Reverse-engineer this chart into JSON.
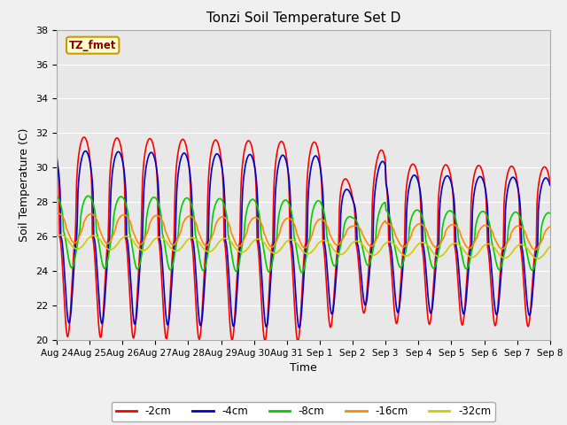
{
  "title": "Tonzi Soil Temperature Set D",
  "xlabel": "Time",
  "ylabel": "Soil Temperature (C)",
  "ylim": [
    20,
    38
  ],
  "yticks": [
    20,
    22,
    24,
    26,
    28,
    30,
    32,
    34,
    36,
    38
  ],
  "fig_bg_color": "#f0f0f0",
  "plot_bg_color": "#e8e8e8",
  "annotation_text": "TZ_fmet",
  "annotation_bg": "#ffffcc",
  "annotation_border": "#cc9900",
  "annotation_text_color": "#880000",
  "series_colors": {
    "-2cm": "#ff0000",
    "-4cm": "#0000cc",
    "-8cm": "#00cc00",
    "-16cm": "#ff8800",
    "-32cm": "#cccc00"
  },
  "series_lw": 1.2,
  "tick_labels": [
    "Aug 24",
    "Aug 25",
    "Aug 26",
    "Aug 27",
    "Aug 28",
    "Aug 29",
    "Aug 30",
    "Aug 31",
    "Sep 1",
    "Sep 2",
    "Sep 3",
    "Sep 4",
    "Sep 5",
    "Sep 6",
    "Sep 7",
    "Sep 8"
  ],
  "grid_color": "#ffffff",
  "figsize": [
    6.4,
    4.8
  ],
  "dpi": 100
}
